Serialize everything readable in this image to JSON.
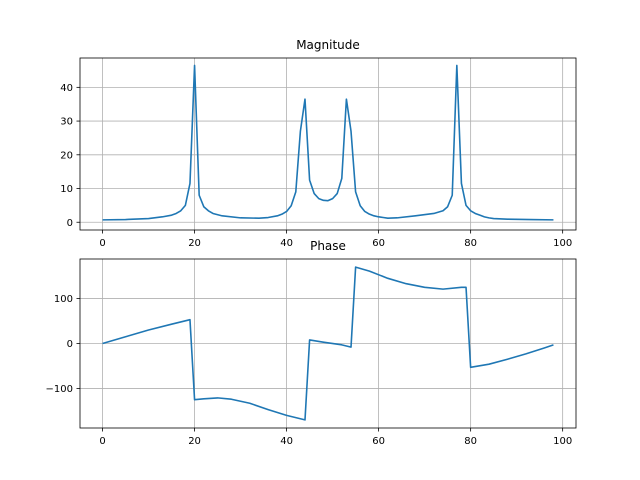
{
  "chart_data": [
    {
      "type": "line",
      "title": "Magnitude",
      "xlabel": "",
      "ylabel": "",
      "xlim": [
        -4.9,
        102.9
      ],
      "ylim": [
        -2.3,
        48.7
      ],
      "xticks": [
        0,
        20,
        40,
        60,
        80,
        100
      ],
      "yticks": [
        0,
        10,
        20,
        30,
        40
      ],
      "xtick_labels": [
        "0",
        "20",
        "40",
        "60",
        "80",
        "100"
      ],
      "ytick_labels": [
        "0",
        "10",
        "20",
        "30",
        "40"
      ],
      "grid": true,
      "line_color": "#1f77b4",
      "series": [
        {
          "x": [
            0,
            5,
            10,
            13,
            15,
            16,
            17,
            18,
            19,
            20,
            21,
            22,
            23,
            24,
            26,
            30,
            34,
            36,
            38,
            39,
            40,
            41,
            42,
            43,
            44,
            45,
            46,
            47,
            48,
            49,
            50,
            51,
            52,
            53,
            54,
            55,
            56,
            57,
            58,
            59,
            60,
            61,
            62,
            64,
            68,
            72,
            74,
            75,
            76,
            77,
            78,
            79,
            80,
            81,
            82,
            83,
            84,
            85,
            88,
            93,
            98
          ],
          "y": [
            0.7,
            0.8,
            1.1,
            1.6,
            2.1,
            2.6,
            3.4,
            5.0,
            11.5,
            46.5,
            8.0,
            4.6,
            3.4,
            2.6,
            1.9,
            1.3,
            1.2,
            1.4,
            1.9,
            2.4,
            3.2,
            4.9,
            9.0,
            27.0,
            36.5,
            12.5,
            8.5,
            7.0,
            6.5,
            6.4,
            7.0,
            8.5,
            13.0,
            36.5,
            27.0,
            9.0,
            4.9,
            3.2,
            2.4,
            1.9,
            1.6,
            1.4,
            1.2,
            1.3,
            1.9,
            2.6,
            3.4,
            4.6,
            8.0,
            46.5,
            11.5,
            5.0,
            3.4,
            2.6,
            2.1,
            1.6,
            1.3,
            1.1,
            0.9,
            0.8,
            0.7
          ]
        }
      ]
    },
    {
      "type": "line",
      "title": "Phase",
      "xlabel": "",
      "ylabel": "",
      "xlim": [
        -4.9,
        102.9
      ],
      "ylim": [
        -188,
        188
      ],
      "xticks": [
        0,
        20,
        40,
        60,
        80,
        100
      ],
      "yticks": [
        -100,
        0,
        100
      ],
      "xtick_labels": [
        "0",
        "20",
        "40",
        "60",
        "80",
        "100"
      ],
      "ytick_labels": [
        "−100",
        "0",
        "100"
      ],
      "grid": true,
      "line_color": "#1f77b4",
      "series": [
        {
          "x": [
            0,
            5,
            10,
            15,
            19,
            20,
            22,
            25,
            28,
            32,
            36,
            40,
            44,
            45,
            48,
            52,
            54,
            55,
            58,
            62,
            66,
            70,
            74,
            78,
            79,
            80,
            84,
            88,
            92,
            96,
            98
          ],
          "y": [
            0,
            15,
            30,
            43,
            53,
            -125,
            -123,
            -121,
            -124,
            -133,
            -147,
            -160,
            -170,
            8,
            3,
            -3,
            -8,
            170,
            161,
            145,
            133,
            125,
            121,
            125,
            125,
            -53,
            -46,
            -35,
            -23,
            -10,
            -3
          ]
        }
      ]
    }
  ]
}
